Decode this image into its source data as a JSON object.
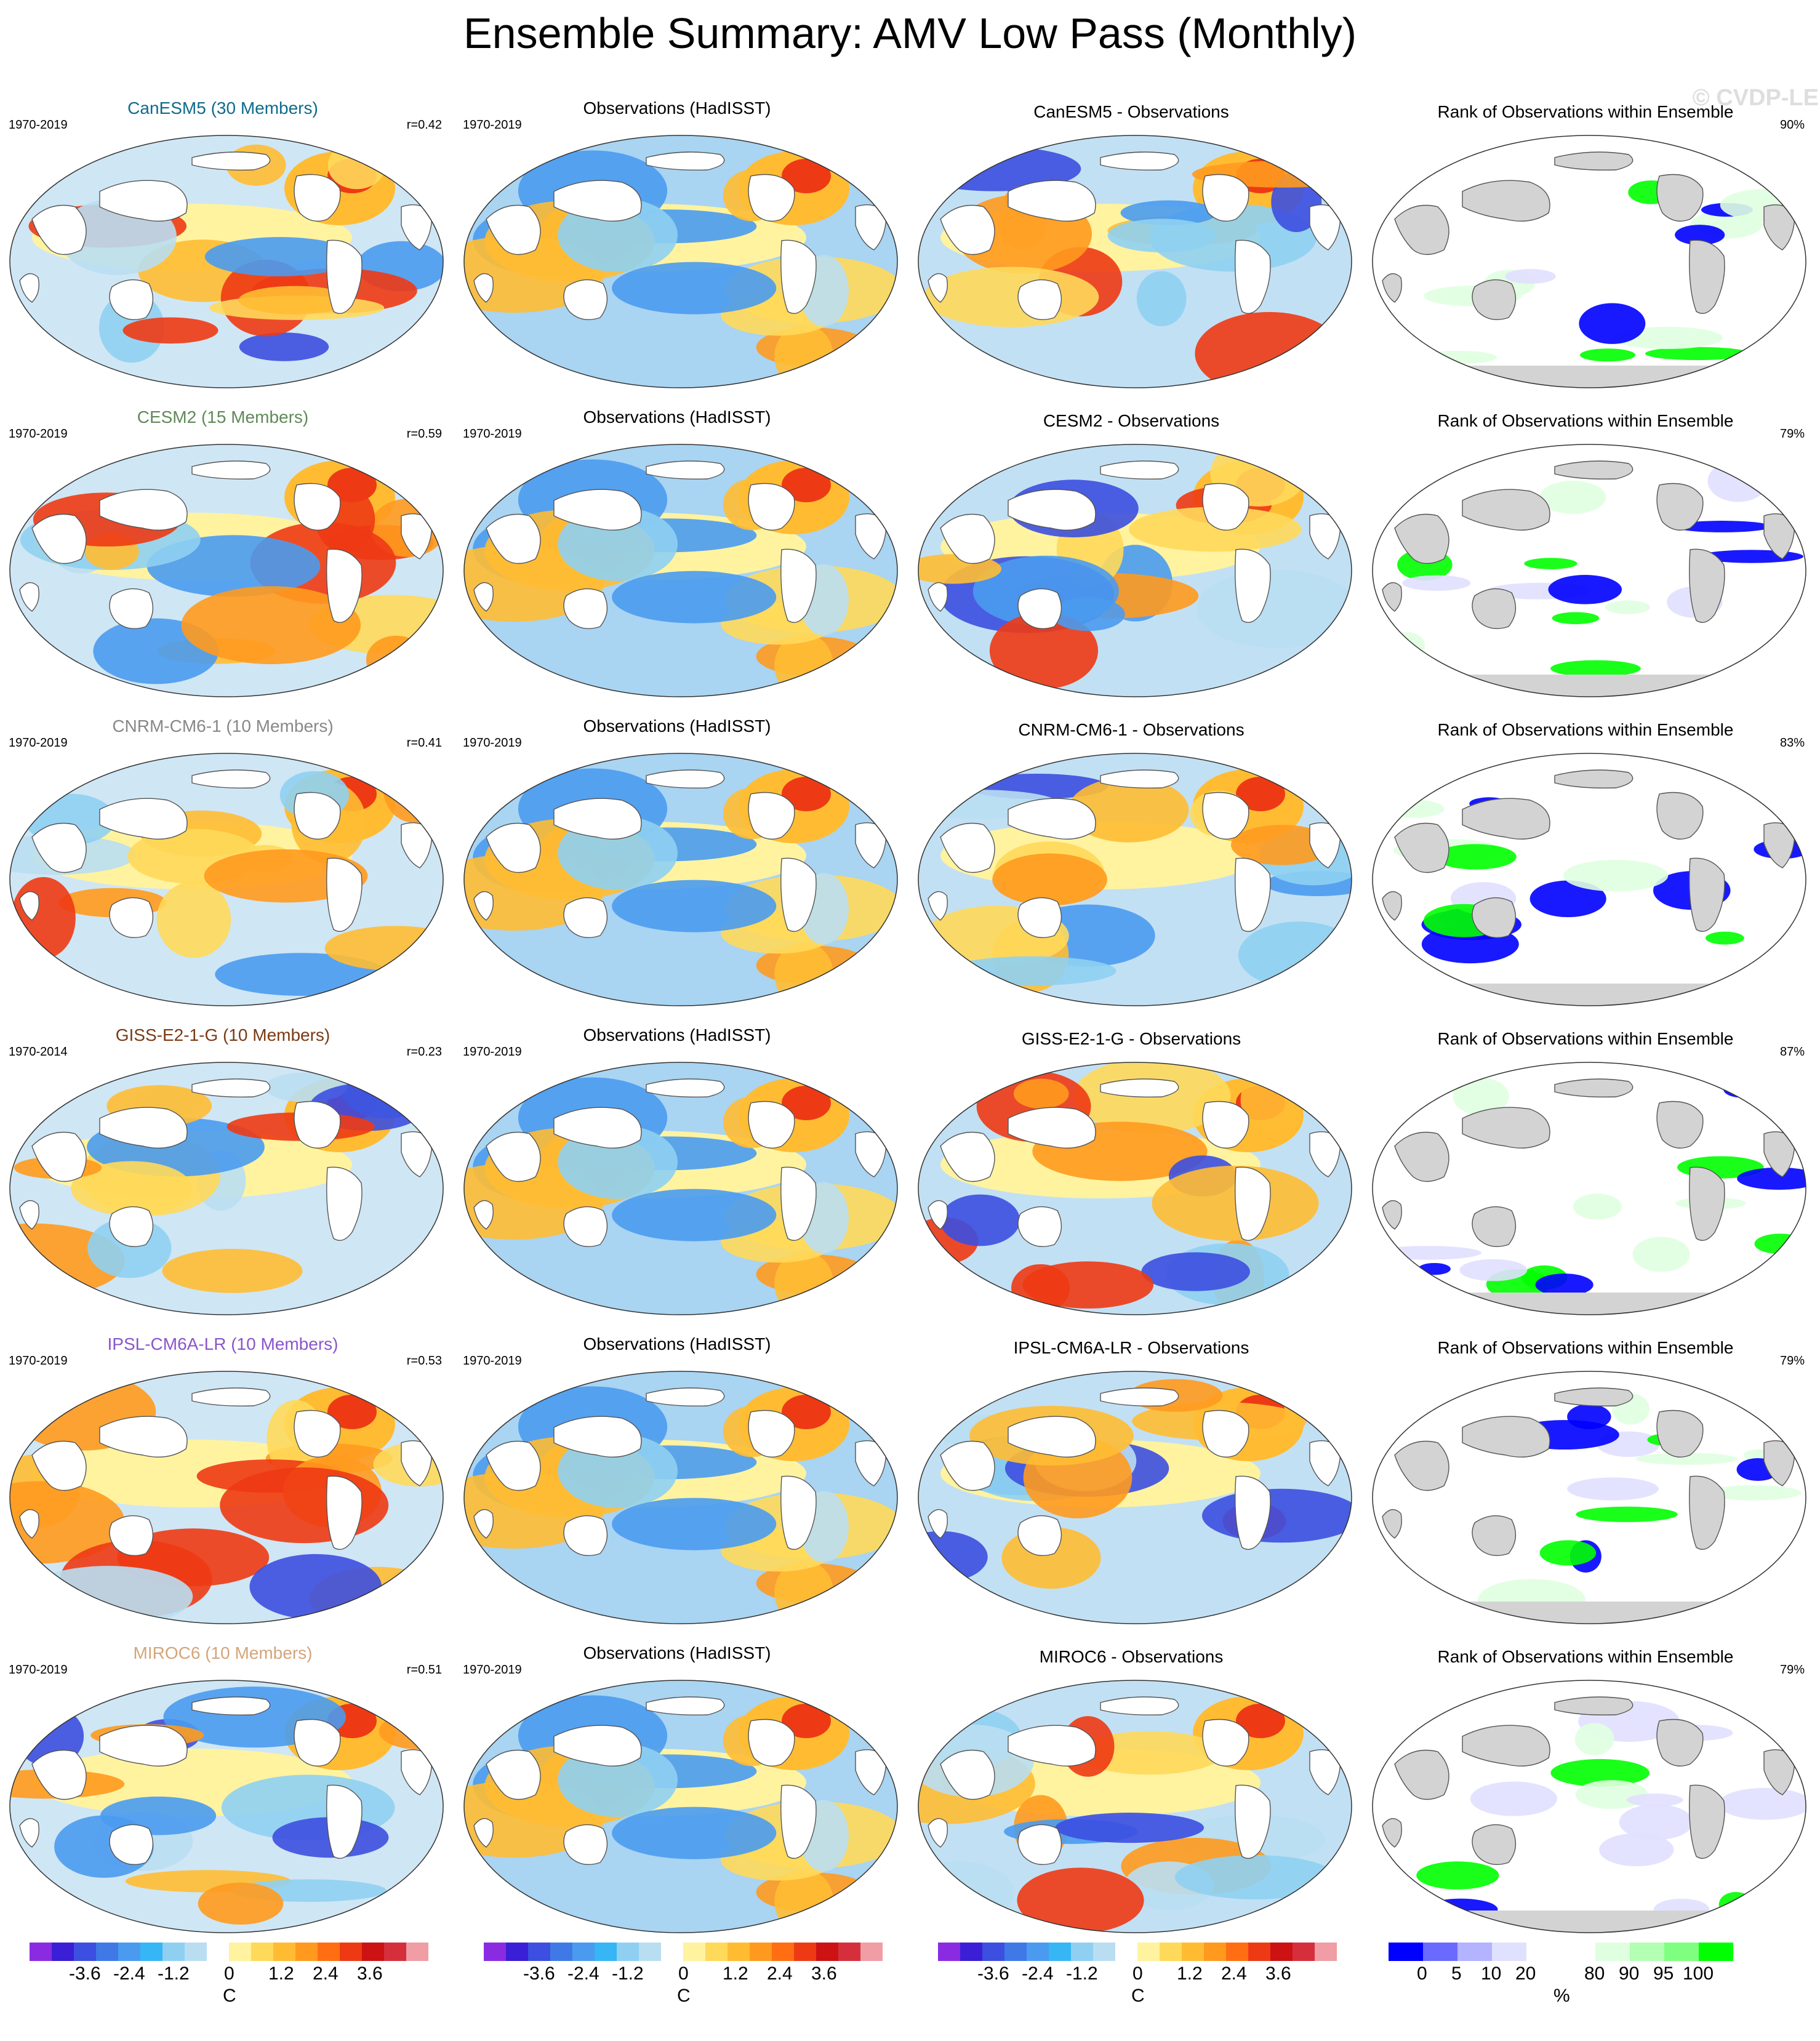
{
  "title": "Ensemble Summary: AMV Low Pass (Monthly)",
  "watermark": "© CVDP-LE",
  "rows": [
    {
      "model": "CanESM5 (30 Members)",
      "model_color": "#0f6b8a",
      "period": "1970-2019",
      "r": "r=0.42",
      "obs_title": "Observations (HadISST)",
      "obs_period": "1970-2019",
      "diff_title": "CanESM5 - Observations",
      "rank_title": "Rank of Observations within Ensemble",
      "rank_pct": "90%"
    },
    {
      "model": "CESM2 (15 Members)",
      "model_color": "#5f8a57",
      "period": "1970-2019",
      "r": "r=0.59",
      "obs_title": "Observations (HadISST)",
      "obs_period": "1970-2019",
      "diff_title": "CESM2 - Observations",
      "rank_title": "Rank of Observations within Ensemble",
      "rank_pct": "79%"
    },
    {
      "model": "CNRM-CM6-1 (10 Members)",
      "model_color": "#888888",
      "period": "1970-2019",
      "r": "r=0.41",
      "obs_title": "Observations (HadISST)",
      "obs_period": "1970-2019",
      "diff_title": "CNRM-CM6-1 - Observations",
      "rank_title": "Rank of Observations within Ensemble",
      "rank_pct": "83%"
    },
    {
      "model": "GISS-E2-1-G (10 Members)",
      "model_color": "#7a3a14",
      "period": "1970-2014",
      "r": "r=0.23",
      "obs_title": "Observations (HadISST)",
      "obs_period": "1970-2019",
      "diff_title": "GISS-E2-1-G - Observations",
      "rank_title": "Rank of Observations within Ensemble",
      "rank_pct": "87%"
    },
    {
      "model": "IPSL-CM6A-LR (10 Members)",
      "model_color": "#8a55cc",
      "period": "1970-2019",
      "r": "r=0.53",
      "obs_title": "Observations (HadISST)",
      "obs_period": "1970-2019",
      "diff_title": "IPSL-CM6A-LR - Observations",
      "rank_title": "Rank of Observations within Ensemble",
      "rank_pct": "79%"
    },
    {
      "model": "MIROC6 (10 Members)",
      "model_color": "#d4a57a",
      "period": "1970-2019",
      "r": "r=0.51",
      "obs_title": "Observations (HadISST)",
      "obs_period": "1970-2019",
      "diff_title": "MIROC6 - Observations",
      "rank_title": "Rank of Observations within Ensemble",
      "rank_pct": "79%"
    }
  ],
  "temp_colorbar": {
    "colors": [
      "#8a2be2",
      "#3a1fd6",
      "#3c4fe0",
      "#3f79e6",
      "#4a9bf0",
      "#36b6f5",
      "#8fd0f2",
      "#b9def2",
      "#ffffff",
      "#fff3a0",
      "#ffd95a",
      "#ffbc33",
      "#ff9a1e",
      "#ff6e12",
      "#ee3a14",
      "#cc1212",
      "#d62f3c",
      "#f09da5"
    ],
    "labels": [
      "-3.6",
      "-2.4",
      "-1.2",
      "0",
      "1.2",
      "2.4",
      "3.6"
    ],
    "unit": "C"
  },
  "rank_colorbar": {
    "colors": [
      "#0000ff",
      "#6a6aff",
      "#b3b3ff",
      "#e0e0ff",
      "#ffffff",
      "#ffffff",
      "#e0ffe0",
      "#b3ffb3",
      "#7fff7f",
      "#00ff00"
    ],
    "labels": [
      "0",
      "5",
      "10",
      "20",
      "80",
      "90",
      "95",
      "100"
    ],
    "unit": "%"
  }
}
